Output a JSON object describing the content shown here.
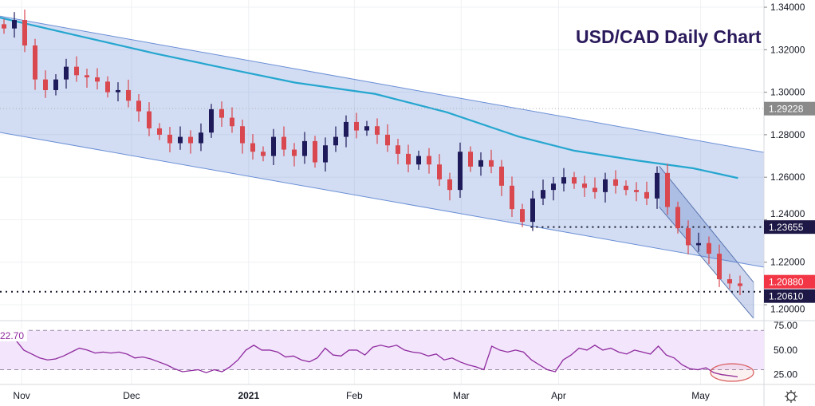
{
  "chart_data": {
    "type": "candlestick",
    "title": "USD/CAD Daily Chart",
    "ylim": [
      1.1925,
      1.3434
    ],
    "y_ticks": [
      "1.34000",
      "1.32000",
      "1.30000",
      "1.28000",
      "1.26000",
      "1.24000",
      "1.22000",
      "1.20000"
    ],
    "y_tick_values": [
      1.34,
      1.32,
      1.3,
      1.28,
      1.26,
      1.24,
      1.22,
      1.2
    ],
    "x_ticks": [
      {
        "label": "Nov",
        "bar": 1.7
      },
      {
        "label": "Dec",
        "bar": 12.3
      },
      {
        "label": "2021",
        "bar": 23.6
      },
      {
        "label": "Feb",
        "bar": 33.8
      },
      {
        "label": "Mar",
        "bar": 44.1
      },
      {
        "label": "Apr",
        "bar": 53.5
      },
      {
        "label": "May",
        "bar": 67.2
      }
    ],
    "closes": [
      1.33,
      1.334,
      1.322,
      1.306,
      1.301,
      1.306,
      1.312,
      1.308,
      1.307,
      1.305,
      1.3,
      1.301,
      1.296,
      1.291,
      1.283,
      1.28,
      1.276,
      1.279,
      1.276,
      1.281,
      1.292,
      1.288,
      1.284,
      1.276,
      1.272,
      1.27,
      1.279,
      1.273,
      1.27,
      1.277,
      1.267,
      1.275,
      1.279,
      1.286,
      1.282,
      1.284,
      1.28,
      1.275,
      1.271,
      1.266,
      1.27,
      1.266,
      1.259,
      1.254,
      1.272,
      1.265,
      1.268,
      1.265,
      1.256,
      1.245,
      1.239,
      1.25,
      1.254,
      1.257,
      1.26,
      1.257,
      1.255,
      1.253,
      1.259,
      1.256,
      1.254,
      1.253,
      1.25,
      1.262,
      1.246,
      1.236,
      1.228,
      1.229,
      1.224,
      1.212,
      1.21,
      1.2088
    ],
    "moving_average": [
      [
        -0.4,
        1.3351
      ],
      [
        7.3,
        1.3264
      ],
      [
        14.7,
        1.3181
      ],
      [
        22.4,
        1.3102
      ],
      [
        28.1,
        1.3045
      ],
      [
        35.8,
        1.2992
      ],
      [
        42.7,
        1.2906
      ],
      [
        49.6,
        1.2792
      ],
      [
        55,
        1.2725
      ],
      [
        61,
        1.2679
      ],
      [
        66.5,
        1.2642
      ],
      [
        70.8,
        1.2596
      ]
    ],
    "channel": {
      "upper": [
        [
          -0.4,
          1.3358
        ],
        [
          73.3,
          1.2717
        ]
      ],
      "lower": [
        [
          -0.4,
          1.2811
        ],
        [
          73.3,
          1.2177
        ]
      ]
    },
    "small_channel": {
      "upper": [
        [
          63.2,
          1.2653
        ],
        [
          72.3,
          1.2106
        ]
      ],
      "lower": [
        [
          63.2,
          1.246
        ],
        [
          72.3,
          1.1936
        ]
      ]
    },
    "levels": [
      {
        "label": "1.29228",
        "value": 1.29228,
        "color": "#8a8a8a",
        "from_bar": -1,
        "style": "faint"
      },
      {
        "label": "1.23655",
        "value": 1.23655,
        "color": "#1e1846",
        "from_bar": 50.8,
        "style": "dotted"
      },
      {
        "label": "1.20880",
        "value": 1.2088,
        "color": "#f23645",
        "from_bar": 72,
        "style": "none"
      },
      {
        "label": "1.20610",
        "value": 1.2061,
        "color": "#1e1846",
        "from_bar": -1,
        "style": "dotted"
      }
    ],
    "colors": {
      "up": "#1f1a5a",
      "down": "#d9474f",
      "ma": "#25a6cf",
      "channel": "#6b8fd6"
    },
    "rsi": {
      "label": "22.70",
      "ylim": [
        15,
        80
      ],
      "y_ticks": [
        "75.00",
        "50.00",
        "25.00"
      ],
      "y_tick_values": [
        75,
        50,
        25
      ],
      "bands": [
        70,
        30
      ],
      "values": [
        62,
        70,
        60,
        50,
        46,
        42,
        40,
        41,
        44,
        48,
        52,
        50,
        47,
        48,
        47,
        48,
        46,
        42,
        43,
        41,
        38,
        35,
        31,
        28,
        29,
        30,
        27,
        30,
        28,
        33,
        40,
        50,
        55,
        50,
        50,
        48,
        43,
        44,
        40,
        38,
        42,
        52,
        45,
        44,
        50,
        50,
        45,
        53,
        55,
        53,
        55,
        50,
        48,
        47,
        44,
        46,
        40,
        42,
        38,
        35,
        33,
        30,
        54,
        50,
        48,
        50,
        48,
        40,
        35,
        30,
        28,
        40,
        45,
        52,
        50,
        55,
        50,
        52,
        48,
        46,
        50,
        48,
        46,
        54,
        45,
        42,
        35,
        31,
        30,
        32,
        27,
        25,
        24,
        22.7
      ]
    }
  }
}
